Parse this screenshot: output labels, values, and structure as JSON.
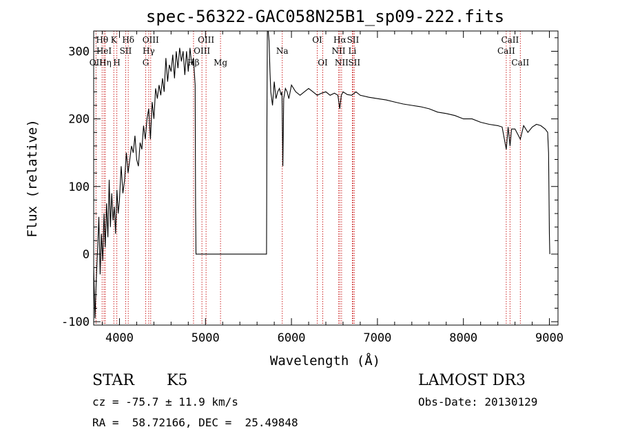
{
  "chart_data": {
    "type": "line",
    "title": "spec-56322-GAC058N25B1_sp09-222.fits",
    "xlabel": "Wavelength (Å)",
    "ylabel": "Flux (relative)",
    "xlim": [
      3700,
      9100
    ],
    "ylim": [
      -105,
      330
    ],
    "xticks": [
      4000,
      5000,
      6000,
      7000,
      8000,
      9000
    ],
    "yticks": [
      -100,
      0,
      100,
      200,
      300
    ],
    "series": [
      {
        "name": "flux",
        "x": [
          3700,
          3715,
          3730,
          3745,
          3760,
          3775,
          3790,
          3805,
          3820,
          3835,
          3850,
          3865,
          3880,
          3895,
          3910,
          3925,
          3940,
          3955,
          3970,
          3985,
          4000,
          4020,
          4040,
          4060,
          4080,
          4100,
          4120,
          4140,
          4160,
          4180,
          4200,
          4220,
          4240,
          4260,
          4280,
          4300,
          4320,
          4340,
          4360,
          4380,
          4400,
          4420,
          4440,
          4460,
          4480,
          4500,
          4520,
          4540,
          4560,
          4580,
          4600,
          4620,
          4640,
          4660,
          4680,
          4700,
          4720,
          4740,
          4760,
          4780,
          4800,
          4820,
          4840,
          4860,
          4880,
          4885,
          4890,
          4900,
          5000,
          5200,
          5400,
          5600,
          5700,
          5705,
          5710,
          5715,
          5720,
          5730,
          5740,
          5750,
          5760,
          5780,
          5800,
          5820,
          5840,
          5860,
          5880,
          5890,
          5895,
          5900,
          5910,
          5930,
          5950,
          5970,
          6000,
          6050,
          6100,
          6150,
          6200,
          6250,
          6300,
          6350,
          6400,
          6450,
          6500,
          6540,
          6562,
          6580,
          6600,
          6650,
          6700,
          6750,
          6800,
          6900,
          7000,
          7100,
          7200,
          7300,
          7400,
          7500,
          7600,
          7700,
          7800,
          7900,
          8000,
          8100,
          8200,
          8300,
          8400,
          8450,
          8498,
          8520,
          8542,
          8560,
          8600,
          8662,
          8700,
          8750,
          8800,
          8850,
          8900,
          8950,
          8980,
          8990,
          9000,
          9005
        ],
        "values": [
          -20,
          -95,
          -40,
          5,
          55,
          -30,
          30,
          -10,
          60,
          10,
          75,
          25,
          110,
          40,
          90,
          50,
          70,
          30,
          95,
          60,
          80,
          130,
          90,
          110,
          150,
          120,
          140,
          160,
          150,
          175,
          140,
          130,
          165,
          155,
          190,
          170,
          200,
          215,
          170,
          225,
          200,
          245,
          230,
          250,
          235,
          260,
          240,
          290,
          255,
          280,
          270,
          295,
          260,
          300,
          275,
          305,
          285,
          300,
          265,
          300,
          270,
          305,
          280,
          290,
          250,
          70,
          0,
          0,
          0,
          0,
          0,
          0,
          0,
          0,
          0,
          200,
          330,
          330,
          315,
          270,
          240,
          220,
          255,
          230,
          240,
          245,
          235,
          240,
          180,
          130,
          230,
          245,
          240,
          230,
          250,
          240,
          235,
          240,
          245,
          240,
          235,
          238,
          240,
          235,
          238,
          235,
          215,
          235,
          240,
          236,
          235,
          240,
          235,
          232,
          230,
          228,
          225,
          222,
          220,
          218,
          215,
          210,
          208,
          205,
          200,
          200,
          195,
          192,
          190,
          188,
          155,
          188,
          160,
          185,
          185,
          170,
          190,
          180,
          188,
          192,
          190,
          185,
          180,
          150,
          30,
          0
        ]
      }
    ],
    "line_labels": [
      {
        "label": "Hθ",
        "x": 3798,
        "row": 1
      },
      {
        "label": "OII",
        "x": 3727,
        "row": 3
      },
      {
        "label": "HeI",
        "x": 3820,
        "row": 2
      },
      {
        "label": "Hη",
        "x": 3835,
        "row": 3
      },
      {
        "label": "K",
        "x": 3934,
        "row": 1
      },
      {
        "label": "H",
        "x": 3969,
        "row": 3
      },
      {
        "label": "SII",
        "x": 4072,
        "row": 2
      },
      {
        "label": "Hδ",
        "x": 4102,
        "row": 1
      },
      {
        "label": "G",
        "x": 4305,
        "row": 3
      },
      {
        "label": "OIII",
        "x": 4363,
        "row": 1
      },
      {
        "label": "Hγ",
        "x": 4340,
        "row": 2
      },
      {
        "label": "Hβ",
        "x": 4861,
        "row": 3
      },
      {
        "label": "OIII",
        "x": 4959,
        "row": 2
      },
      {
        "label": "OIII",
        "x": 5007,
        "row": 1
      },
      {
        "label": "Mg",
        "x": 5175,
        "row": 3
      },
      {
        "label": "Na",
        "x": 5893,
        "row": 2
      },
      {
        "label": "OI",
        "x": 6300,
        "row": 1
      },
      {
        "label": "OI",
        "x": 6364,
        "row": 3
      },
      {
        "label": "NII",
        "x": 6548,
        "row": 2
      },
      {
        "label": "Hα",
        "x": 6563,
        "row": 1
      },
      {
        "label": "NII",
        "x": 6583,
        "row": 3
      },
      {
        "label": "SII",
        "x": 6716,
        "row": 1
      },
      {
        "label": "Li",
        "x": 6708,
        "row": 2
      },
      {
        "label": "SII",
        "x": 6731,
        "row": 3
      },
      {
        "label": "CaII",
        "x": 8498,
        "row": 2
      },
      {
        "label": "CaII",
        "x": 8542,
        "row": 1
      },
      {
        "label": "CaII",
        "x": 8662,
        "row": 3
      }
    ]
  },
  "info": {
    "object_class": "STAR",
    "subclass": "K5",
    "survey": "LAMOST DR3",
    "redshift_text": "cz = -75.7 ± 11.9 km/s",
    "obs_date_text": "Obs-Date: 20130129",
    "coords_text": "RA =  58.72166, DEC =  25.49848"
  }
}
